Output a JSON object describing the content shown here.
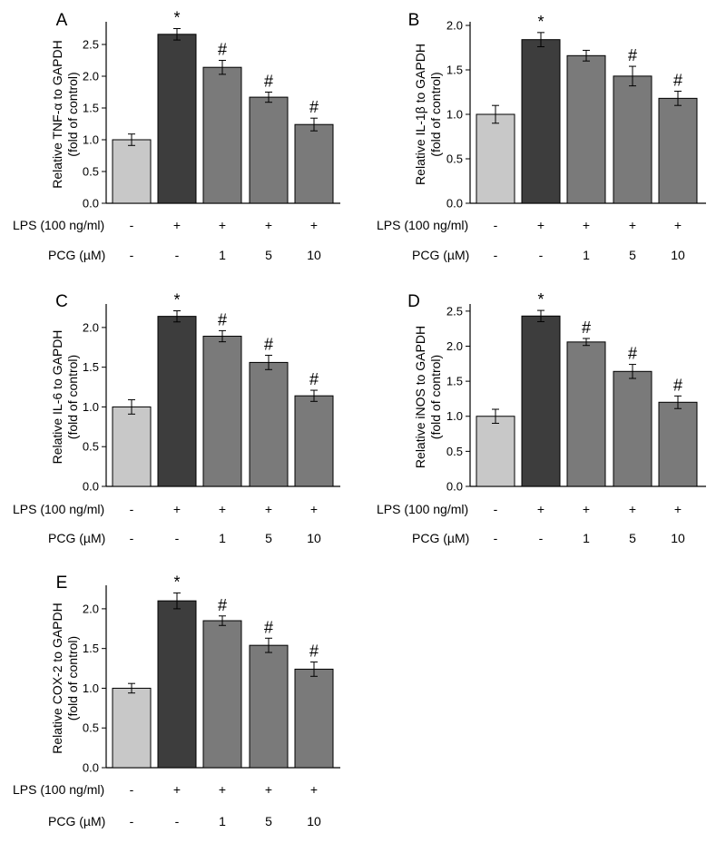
{
  "figure": {
    "condition_rows": [
      {
        "label": "LPS (100 ng/ml)",
        "values": [
          "-",
          "+",
          "+",
          "+",
          "+"
        ]
      },
      {
        "label": "PCG (µM)",
        "values": [
          "-",
          "-",
          "1",
          "5",
          "10"
        ]
      }
    ],
    "colors": [
      "#c8c8c8",
      "#3d3d3d",
      "#7a7a7a",
      "#7a7a7a",
      "#7a7a7a"
    ]
  },
  "chart_data": [
    {
      "type": "bar",
      "panel_label": "A",
      "ylabel": [
        "Relative TNF-α to GAPDH",
        "(fold of control)"
      ],
      "ylim": [
        0,
        2.8
      ],
      "yticks": [
        "0.0",
        "0.5",
        "1.0",
        "1.5",
        "2.0",
        "2.5"
      ],
      "values": [
        1.0,
        2.66,
        2.14,
        1.67,
        1.24
      ],
      "errors": [
        0.09,
        0.09,
        0.11,
        0.08,
        0.1
      ],
      "annotations": [
        "",
        "*",
        "#",
        "#",
        "#"
      ]
    },
    {
      "type": "bar",
      "panel_label": "B",
      "ylabel": [
        "Relative IL-1β to GAPDH",
        "(fold of control)"
      ],
      "ylim": [
        0,
        2.0
      ],
      "yticks": [
        "0.0",
        "0.5",
        "1.0",
        "1.5",
        "2.0"
      ],
      "values": [
        1.0,
        1.84,
        1.66,
        1.43,
        1.18
      ],
      "errors": [
        0.1,
        0.08,
        0.06,
        0.11,
        0.08
      ],
      "annotations": [
        "",
        "*",
        "",
        "#",
        "#"
      ]
    },
    {
      "type": "bar",
      "panel_label": "C",
      "ylabel": [
        "Relative IL-6 to GAPDH",
        "(fold of control)"
      ],
      "ylim": [
        0,
        2.25
      ],
      "yticks": [
        "0.0",
        "0.5",
        "1.0",
        "1.5",
        "2.0"
      ],
      "values": [
        1.0,
        2.14,
        1.89,
        1.56,
        1.14
      ],
      "errors": [
        0.09,
        0.07,
        0.07,
        0.09,
        0.07
      ],
      "annotations": [
        "",
        "*",
        "#",
        "#",
        "#"
      ]
    },
    {
      "type": "bar",
      "panel_label": "D",
      "ylabel": [
        "Relative iNOS to GAPDH",
        "(fold of control)"
      ],
      "ylim": [
        0,
        2.55
      ],
      "yticks": [
        "0.0",
        "0.5",
        "1.0",
        "1.5",
        "2.0",
        "2.5"
      ],
      "values": [
        1.0,
        2.43,
        2.06,
        1.64,
        1.2
      ],
      "errors": [
        0.1,
        0.08,
        0.05,
        0.1,
        0.09
      ],
      "annotations": [
        "",
        "*",
        "#",
        "#",
        "#"
      ]
    },
    {
      "type": "bar",
      "panel_label": "E",
      "ylabel": [
        "Relative COX-2 to GAPDH",
        "(fold of control)"
      ],
      "ylim": [
        0,
        2.25
      ],
      "yticks": [
        "0.0",
        "0.5",
        "1.0",
        "1.5",
        "2.0"
      ],
      "values": [
        1.0,
        2.1,
        1.85,
        1.54,
        1.24
      ],
      "errors": [
        0.06,
        0.1,
        0.06,
        0.09,
        0.09
      ],
      "annotations": [
        "",
        "*",
        "#",
        "#",
        "#"
      ]
    }
  ]
}
